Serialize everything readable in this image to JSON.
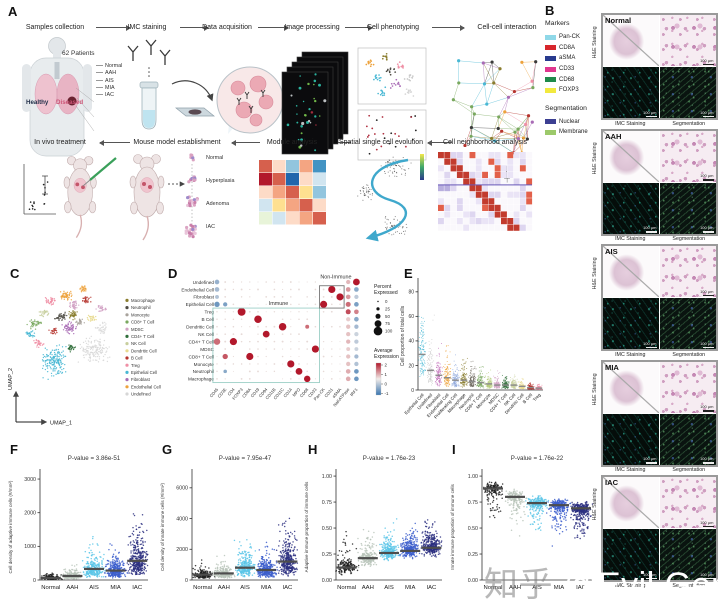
{
  "letters": {
    "A": "A",
    "B": "B",
    "C": "C",
    "D": "D",
    "E": "E",
    "F": "F",
    "G": "G",
    "H": "H",
    "I": "I"
  },
  "panelA": {
    "top_steps": [
      "Samples collection",
      "IMC staining",
      "Data acquisition",
      "Image processing",
      "Cell phenotyping",
      "Cell-cell interaction"
    ],
    "bottom_steps": [
      "In vivo treatment",
      "Mouse model establishment",
      "Module analysis",
      "Spatial single cell evolution",
      "Cell neighborhood analysis"
    ],
    "patients_label": "62 Patients",
    "stage_labels": [
      "Normal",
      "AAH",
      "AIS",
      "MIA",
      "IAC"
    ],
    "healthy_label": "Healthy",
    "diseased_label": "Diseased",
    "mouse_stages": [
      "Normal",
      "Hyperplasia",
      "Adenoma",
      "IAC"
    ],
    "module_colors": [
      [
        "#d6604d",
        "#fddbc7",
        "#92c5de",
        "#f4a582",
        "#4393c3"
      ],
      [
        "#b2182b",
        "#d6604d",
        "#2166ac",
        "#fddbc7",
        "#d1e5f0"
      ],
      [
        "#fddbc7",
        "#f4a582",
        "#d6604d",
        "#fee090",
        "#92c5de"
      ],
      [
        "#d1e5f0",
        "#fee090",
        "#f4a582",
        "#d6604d",
        "#fddbc7"
      ],
      [
        "#e8f4d9",
        "#d1e5f0",
        "#fddbc7",
        "#f4a582",
        "#d6604d"
      ]
    ]
  },
  "panelB": {
    "markers_title": "Markers",
    "markers": [
      {
        "label": "Pan-CK",
        "color": "#8fd8e8"
      },
      {
        "label": "CD8A",
        "color": "#d7262c"
      },
      {
        "label": "aSMA",
        "color": "#283a8e"
      },
      {
        "label": "CD33",
        "color": "#e0368f"
      },
      {
        "label": "CD68",
        "color": "#1e8a4a"
      },
      {
        "label": "FOXP3",
        "color": "#f2e93e"
      }
    ],
    "segmentation_title": "Segmentation",
    "segmentation": [
      {
        "label": "Nuclear",
        "color": "#3c3f92"
      },
      {
        "label": "Membrane",
        "color": "#9cc96a"
      }
    ],
    "blocks": [
      {
        "label": "Normal"
      },
      {
        "label": "AAH"
      },
      {
        "label": "AIS"
      },
      {
        "label": "MIA"
      },
      {
        "label": "IAC"
      }
    ],
    "row_label": "H&E Staining",
    "col_labels": [
      "IMC Staining",
      "Segmentation"
    ],
    "scale_bar": "100 μm"
  },
  "chart_data": {
    "C": {
      "type": "scatter",
      "xlabel": "UMAP_1",
      "ylabel": "UMAP_2",
      "legend": [
        {
          "label": "Macrophage",
          "color": "#8a7d2e"
        },
        {
          "label": "Neutrophil",
          "color": "#4f4c45"
        },
        {
          "label": "Monocyte",
          "color": "#a8a39c"
        },
        {
          "label": "CD8+ T Cell",
          "color": "#79a85e"
        },
        {
          "label": "MDSC",
          "color": "#d2a2c4"
        },
        {
          "label": "CD4+ T Cell",
          "color": "#2f6e3a"
        },
        {
          "label": "NK Cell",
          "color": "#c8cf9e"
        },
        {
          "label": "Dendritic Cell",
          "color": "#e8da8e"
        },
        {
          "label": "B Cell",
          "color": "#b5342e"
        },
        {
          "label": "Treg",
          "color": "#ef8fa5"
        },
        {
          "label": "Epithelial Cell",
          "color": "#49b8d4"
        },
        {
          "label": "Fibroblast",
          "color": "#a86bb5"
        },
        {
          "label": "Endothelial Cell",
          "color": "#eda23c"
        },
        {
          "label": "Undefined",
          "color": "#d6d6d6"
        }
      ],
      "clusters": [
        {
          "x": 52,
          "y": 20,
          "sx": 6,
          "sy": 4,
          "n": 55,
          "c": "#eda23c"
        },
        {
          "x": 70,
          "y": 13,
          "sx": 4,
          "sy": 3,
          "n": 25,
          "c": "#eda23c"
        },
        {
          "x": 37,
          "y": 25,
          "sx": 5,
          "sy": 4,
          "n": 40,
          "c": "#ef8fa5"
        },
        {
          "x": 60,
          "y": 29,
          "sx": 5,
          "sy": 4,
          "n": 38,
          "c": "#d2a2c4"
        },
        {
          "x": 72,
          "y": 24,
          "sx": 4,
          "sy": 3,
          "n": 28,
          "c": "#b5342e"
        },
        {
          "x": 87,
          "y": 32,
          "sx": 5,
          "sy": 4,
          "n": 26,
          "c": "#d2a2c4"
        },
        {
          "x": 47,
          "y": 41,
          "sx": 6,
          "sy": 4,
          "n": 45,
          "c": "#4f4c45"
        },
        {
          "x": 58,
          "y": 39,
          "sx": 5,
          "sy": 4,
          "n": 38,
          "c": "#8a7d2e"
        },
        {
          "x": 66,
          "y": 46,
          "sx": 4,
          "sy": 3,
          "n": 28,
          "c": "#a8a39c"
        },
        {
          "x": 78,
          "y": 42,
          "sx": 4,
          "sy": 3,
          "n": 26,
          "c": "#e8da8e"
        },
        {
          "x": 29,
          "y": 37,
          "sx": 5,
          "sy": 3,
          "n": 28,
          "c": "#c8cf9e"
        },
        {
          "x": 21,
          "y": 48,
          "sx": 6,
          "sy": 4,
          "n": 42,
          "c": "#79a85e"
        },
        {
          "x": 55,
          "y": 52,
          "sx": 7,
          "sy": 5,
          "n": 55,
          "c": "#a86bb5"
        },
        {
          "x": 40,
          "y": 55,
          "sx": 4,
          "sy": 3,
          "n": 22,
          "c": "#b5342e"
        },
        {
          "x": 15,
          "y": 58,
          "sx": 5,
          "sy": 3,
          "n": 26,
          "c": "#49b8d4"
        },
        {
          "x": 24,
          "y": 68,
          "sx": 5,
          "sy": 4,
          "n": 30,
          "c": "#ef8fa5"
        },
        {
          "x": 57,
          "y": 72,
          "sx": 3.5,
          "sy": 3,
          "n": 30,
          "c": "#2f6e3a"
        },
        {
          "x": 40,
          "y": 86,
          "sx": 11,
          "sy": 13,
          "n": 170,
          "c": "#49b8d4"
        },
        {
          "x": 80,
          "y": 74,
          "sx": 13,
          "sy": 11,
          "n": 150,
          "c": "#d8d8d8"
        },
        {
          "x": 88,
          "y": 52,
          "sx": 6,
          "sy": 5,
          "n": 40,
          "c": "#dcdcdc"
        }
      ]
    },
    "D": {
      "type": "dotplot",
      "rows": [
        "Undefined",
        "Endothelial Cell",
        "Fibroblast",
        "Epithelial Cell",
        "Treg",
        "B Cell",
        "Dendritic Cell",
        "NK Cell",
        "CD4+ T Cell",
        "MDSC",
        "CD8+ T Cell",
        "Monocyte",
        "Neutrophil",
        "Macrophage"
      ],
      "cols": [
        "CD45",
        "CD3E",
        "CD4",
        "FOXP3",
        "CD8A",
        "CD19",
        "CD94",
        "CD11B",
        "CD11C",
        "CD14",
        "MPO",
        "CD68",
        "CD33",
        "Pan-CK",
        "CD31",
        "aSMA",
        "NaKATPase",
        "IRF1"
      ],
      "group_labels": {
        "immune": "Immune",
        "non_immune": "Non-Immune"
      },
      "immune_box": {
        "rows": [
          4,
          13
        ],
        "cols": [
          0,
          12
        ]
      },
      "non_immune_box": {
        "rows": [
          1,
          3
        ],
        "cols": [
          13,
          15
        ]
      },
      "legend_size": {
        "title": [
          "Percent",
          "Expressed"
        ],
        "ticks": [
          0,
          25,
          50,
          75,
          100
        ]
      },
      "legend_color": {
        "title": [
          "Average",
          "Expression"
        ],
        "ticks": [
          2,
          1,
          0,
          -1
        ]
      },
      "dots": [
        {
          "r": 4,
          "c": 3,
          "p": 90,
          "v": 2
        },
        {
          "r": 5,
          "c": 5,
          "p": 85,
          "v": 2
        },
        {
          "r": 6,
          "c": 8,
          "p": 85,
          "v": 2
        },
        {
          "r": 6,
          "c": 11,
          "p": 35,
          "v": 1.2
        },
        {
          "r": 7,
          "c": 6,
          "p": 75,
          "v": 2
        },
        {
          "r": 8,
          "c": 0,
          "p": 70,
          "v": 1.2
        },
        {
          "r": 8,
          "c": 2,
          "p": 80,
          "v": 2
        },
        {
          "r": 9,
          "c": 12,
          "p": 80,
          "v": 2
        },
        {
          "r": 10,
          "c": 1,
          "p": 55,
          "v": 1.4
        },
        {
          "r": 10,
          "c": 4,
          "p": 80,
          "v": 2
        },
        {
          "r": 11,
          "c": 9,
          "p": 80,
          "v": 2
        },
        {
          "r": 12,
          "c": 10,
          "p": 75,
          "v": 2
        },
        {
          "r": 12,
          "c": 1,
          "p": 30,
          "v": -0.8
        },
        {
          "r": 13,
          "c": 11,
          "p": 70,
          "v": 2
        },
        {
          "r": 3,
          "c": 13,
          "p": 80,
          "v": 2
        },
        {
          "r": 1,
          "c": 14,
          "p": 80,
          "v": 2
        },
        {
          "r": 2,
          "c": 15,
          "p": 80,
          "v": 2
        },
        {
          "r": 0,
          "c": 17,
          "p": 75,
          "v": 2
        },
        {
          "r": 3,
          "c": 0,
          "p": 55,
          "v": -1
        },
        {
          "r": 3,
          "c": 1,
          "p": 40,
          "v": -0.9
        },
        {
          "r": 0,
          "c": 0,
          "p": 45,
          "v": -0.7
        },
        {
          "r": 1,
          "c": 0,
          "p": 45,
          "v": -0.6
        },
        {
          "r": 2,
          "c": 0,
          "p": 35,
          "v": -0.5
        },
        {
          "r": 0,
          "c": 16,
          "p": 40,
          "v": 0.5
        },
        {
          "r": 1,
          "c": 16,
          "p": 45,
          "v": 0.8
        },
        {
          "r": 2,
          "c": 16,
          "p": 45,
          "v": 0.8
        },
        {
          "r": 3,
          "c": 16,
          "p": 50,
          "v": 1.2
        },
        {
          "r": 4,
          "c": 16,
          "p": 50,
          "v": 1.5
        },
        {
          "r": 5,
          "c": 16,
          "p": 40,
          "v": 0.3
        },
        {
          "r": 6,
          "c": 16,
          "p": 40,
          "v": 0.4
        },
        {
          "r": 7,
          "c": 16,
          "p": 40,
          "v": 0.4
        },
        {
          "r": 8,
          "c": 16,
          "p": 40,
          "v": 0.5
        },
        {
          "r": 9,
          "c": 16,
          "p": 35,
          "v": 0.3
        },
        {
          "r": 10,
          "c": 16,
          "p": 40,
          "v": 0.4
        },
        {
          "r": 11,
          "c": 16,
          "p": 40,
          "v": 0.4
        },
        {
          "r": 12,
          "c": 16,
          "p": 45,
          "v": 0.6
        },
        {
          "r": 13,
          "c": 16,
          "p": 45,
          "v": 0.6
        },
        {
          "r": 1,
          "c": 17,
          "p": 45,
          "v": -0.8
        },
        {
          "r": 2,
          "c": 17,
          "p": 40,
          "v": -0.4
        },
        {
          "r": 3,
          "c": 17,
          "p": 45,
          "v": -0.9
        },
        {
          "r": 4,
          "c": 17,
          "p": 45,
          "v": 1
        },
        {
          "r": 5,
          "c": 17,
          "p": 45,
          "v": -0.8
        },
        {
          "r": 6,
          "c": 17,
          "p": 40,
          "v": -0.6
        },
        {
          "r": 7,
          "c": 17,
          "p": 40,
          "v": -0.3
        },
        {
          "r": 8,
          "c": 17,
          "p": 40,
          "v": -0.4
        },
        {
          "r": 9,
          "c": 17,
          "p": 35,
          "v": -0.3
        },
        {
          "r": 10,
          "c": 17,
          "p": 40,
          "v": -0.6
        },
        {
          "r": 11,
          "c": 17,
          "p": 40,
          "v": -0.5
        },
        {
          "r": 12,
          "c": 17,
          "p": 45,
          "v": -1
        },
        {
          "r": 13,
          "c": 17,
          "p": 45,
          "v": -1
        }
      ]
    },
    "E": {
      "type": "strip",
      "ylabel": "Cell proportion of total cells",
      "yticks": [
        0,
        20,
        40,
        60,
        80
      ],
      "ylim": [
        0,
        88
      ],
      "categories": [
        "Epithelial Cell",
        "Undefined",
        "Fibroblast",
        "Endothelial Cell",
        "Proliferating Cell",
        "Macrophage",
        "Neutrophil",
        "CD8+ T Cell",
        "Monocyte",
        "MDSC",
        "CD4+ T Cell",
        "NK Cell",
        "Dendritic Cell",
        "B Cell",
        "Treg"
      ],
      "colors": [
        "#49b8d4",
        "#c9c9c9",
        "#c06cb8",
        "#eda23c",
        "#8fa8dc",
        "#8a7d2e",
        "#6b675c",
        "#79a85e",
        "#b5cc7a",
        "#d2a2c4",
        "#2f6e3a",
        "#c8cf9e",
        "#e8da8e",
        "#b5342e",
        "#ef8fa5"
      ],
      "medians": [
        29,
        16,
        12,
        10,
        8,
        8,
        7,
        6,
        5,
        4,
        4,
        4,
        3,
        2,
        1.5
      ],
      "maxes": [
        62,
        84,
        38,
        42,
        45,
        38,
        40,
        66,
        22,
        18,
        20,
        24,
        20,
        30,
        12
      ]
    },
    "F": {
      "type": "strip",
      "pvalue": "P-value = 3.86e-51",
      "ylabel": "Cell density of adaptive immune cells (#/mm²)",
      "yticks": [
        0,
        1000,
        2000,
        3000
      ],
      "ylim": [
        0,
        3150
      ],
      "groups": [
        "Normal",
        "AAH",
        "AIS",
        "MIA",
        "IAC"
      ],
      "colors": [
        "#1f1f1f",
        "#b9c4ba",
        "#5ac6e8",
        "#3c5ecc",
        "#2b2f80"
      ],
      "medians": [
        60,
        120,
        330,
        280,
        570
      ],
      "maxes": [
        2050,
        1050,
        1450,
        1420,
        3000
      ],
      "kind": "logn"
    },
    "G": {
      "type": "strip",
      "pvalue": "P-value = 7.95e-47",
      "ylabel": "Cell density of innate immune cells (#/mm²)",
      "yticks": [
        0,
        2000,
        4000,
        6000
      ],
      "ylim": [
        0,
        6900
      ],
      "groups": [
        "Normal",
        "AAH",
        "AIS",
        "MIA",
        "IAC"
      ],
      "colors": [
        "#1f1f1f",
        "#b9c4ba",
        "#5ac6e8",
        "#3c5ecc",
        "#2b2f80"
      ],
      "medians": [
        350,
        430,
        800,
        650,
        1200
      ],
      "maxes": [
        2400,
        1900,
        2700,
        3000,
        6700
      ],
      "kind": "logn"
    },
    "H": {
      "type": "strip",
      "pvalue": "P-value = 1.76e-23",
      "ylabel": "Adaptive immune proportion of immune cells",
      "yticks": [
        0,
        0.25,
        0.5,
        0.75,
        1
      ],
      "ylim": [
        0,
        1.02
      ],
      "groups": [
        "Normal",
        "AAH",
        "AIS",
        "MIA",
        "IAC"
      ],
      "colors": [
        "#1f1f1f",
        "#b9c4ba",
        "#5ac6e8",
        "#3c5ecc",
        "#2b2f80"
      ],
      "medians": [
        0.12,
        0.21,
        0.26,
        0.28,
        0.31
      ],
      "maxes": [
        0.68,
        0.75,
        0.95,
        0.97,
        0.97
      ],
      "kind": "up"
    },
    "I": {
      "type": "strip",
      "pvalue": "P-value = 1.76e-22",
      "ylabel": "Innate immune proportion of immune cells",
      "yticks": [
        0,
        0.25,
        0.5,
        0.75,
        1
      ],
      "ylim": [
        0,
        1.02
      ],
      "groups": [
        "Normal",
        "AAH",
        "AIS",
        "MIA",
        "IAC"
      ],
      "colors": [
        "#1f1f1f",
        "#b9c4ba",
        "#5ac6e8",
        "#3c5ecc",
        "#2b2f80"
      ],
      "medians": [
        0.88,
        0.8,
        0.74,
        0.72,
        0.69
      ],
      "maxes": [
        0.99,
        0.97,
        0.97,
        0.99,
        0.98
      ],
      "kind": "down"
    }
  },
  "watermark": {
    "site": "知乎",
    "handle": "@Evil Genius"
  }
}
